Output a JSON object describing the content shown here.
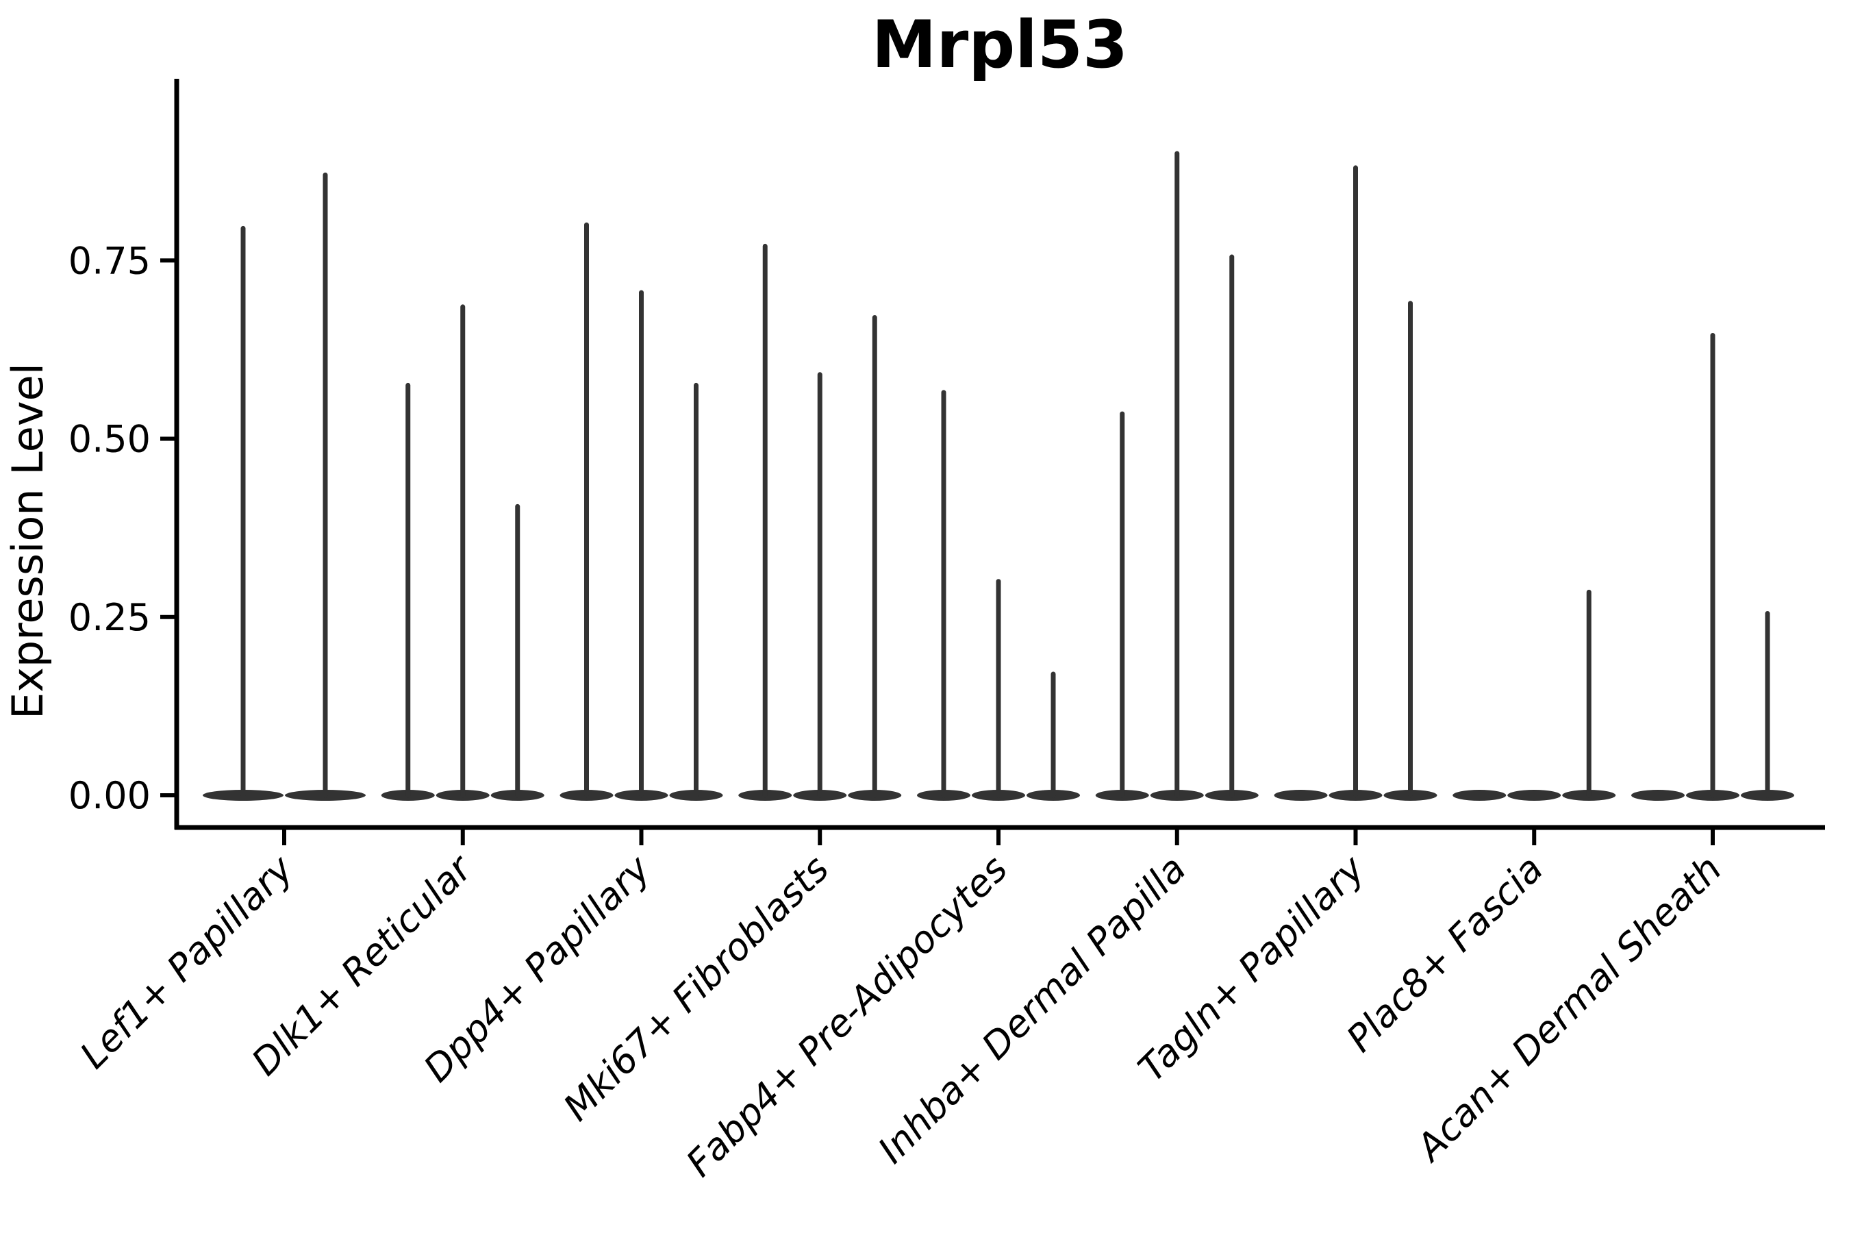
{
  "chart_data": {
    "type": "violin",
    "title": "Mrpl53",
    "xlabel": "",
    "ylabel": "Expression Level",
    "ylim": [
      0,
      0.98
    ],
    "grid": false,
    "legend": "none",
    "violin_color": "#333333",
    "axis_color": "#000000",
    "yticks": [
      {
        "label": "0.00",
        "value": 0.0
      },
      {
        "label": "0.25",
        "value": 0.25
      },
      {
        "label": "0.50",
        "value": 0.5
      },
      {
        "label": "0.75",
        "value": 0.75
      }
    ],
    "note": "Each category shows flat zero-inflated violins; values are the max expression (spike tops) per violin, 0 = flat violin with no spike",
    "categories": [
      {
        "label": "Lef1+ Papillary",
        "violin_max": [
          0.795,
          0.87
        ]
      },
      {
        "label": "Dlk1+ Reticular",
        "violin_max": [
          0.575,
          0.685,
          0.405
        ]
      },
      {
        "label": "Dpp4+ Papillary",
        "violin_max": [
          0.8,
          0.705,
          0.575
        ]
      },
      {
        "label": "Mki67+ Fibroblasts",
        "violin_max": [
          0.77,
          0.59,
          0.67
        ]
      },
      {
        "label": "Fabp4+ Pre-Adipocytes",
        "violin_max": [
          0.565,
          0.3,
          0.17
        ]
      },
      {
        "label": "Inhba+ Dermal Papilla",
        "violin_max": [
          0.535,
          0.9,
          0.755
        ]
      },
      {
        "label": "Tagln+ Papillary",
        "violin_max": [
          0,
          0.88,
          0.69
        ]
      },
      {
        "label": "Plac8+ Fascia",
        "violin_max": [
          0,
          0,
          0.285
        ]
      },
      {
        "label": "Acan+ Dermal Sheath",
        "violin_max": [
          0,
          0.645,
          0.255
        ]
      }
    ]
  }
}
